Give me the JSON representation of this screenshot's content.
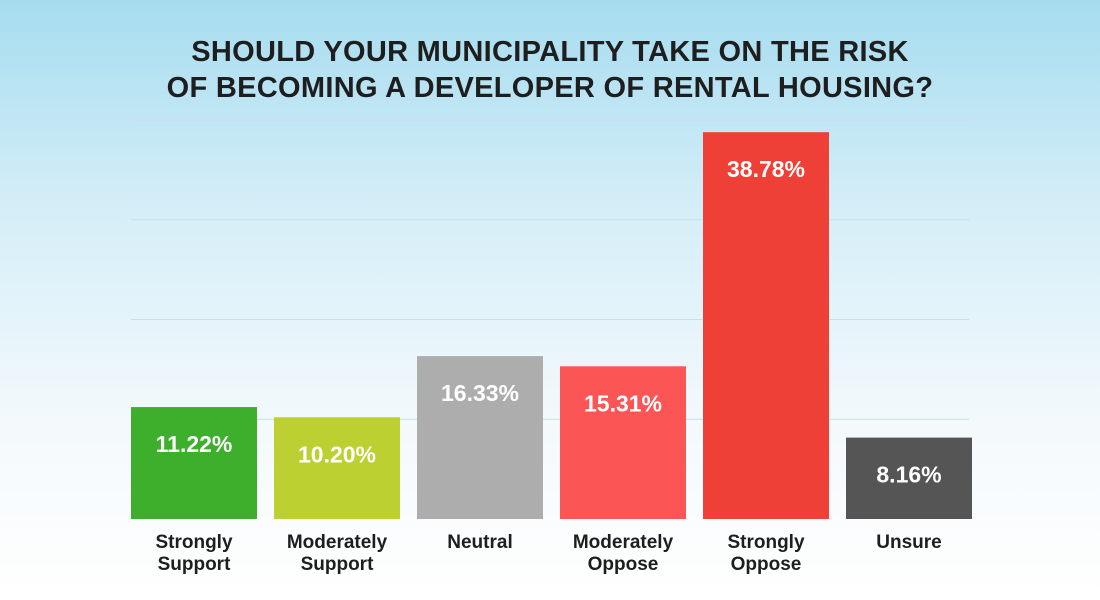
{
  "chart_data": {
    "type": "bar",
    "title_lines": [
      "SHOULD YOUR MUNICIPALITY TAKE ON THE RISK",
      "OF BECOMING A DEVELOPER OF RENTAL HOUSING?"
    ],
    "categories": [
      [
        "Strongly",
        "Support"
      ],
      [
        "Moderately",
        "Support"
      ],
      [
        "Neutral"
      ],
      [
        "Moderately",
        "Oppose"
      ],
      [
        "Strongly",
        "Oppose"
      ],
      [
        "Unsure"
      ]
    ],
    "values": [
      11.22,
      10.2,
      16.33,
      15.31,
      38.78,
      8.16
    ],
    "value_labels": [
      "11.22%",
      "10.20%",
      "16.33%",
      "15.31%",
      "38.78%",
      "8.16%"
    ],
    "colors": [
      "#3daf2c",
      "#bcd031",
      "#adadad",
      "#fc5555",
      "#ee4036",
      "#555555"
    ],
    "ylim": [
      0,
      40
    ],
    "grid": true,
    "legend": "none"
  }
}
